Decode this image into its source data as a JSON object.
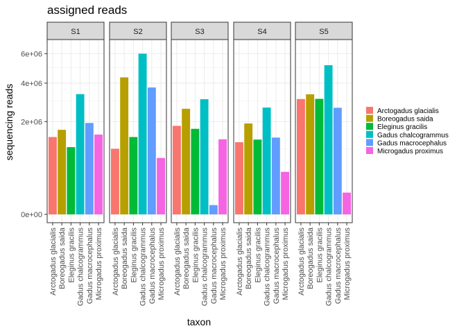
{
  "chart_data": {
    "type": "bar",
    "title": "assigned reads",
    "xlabel": "taxon",
    "ylabel": "sequencing reads",
    "scale": "sqrt",
    "ylim": [
      0,
      7100000
    ],
    "yticks": [
      {
        "value": 0,
        "label": "0e+00"
      },
      {
        "value": 2000000,
        "label": "2e+06"
      },
      {
        "value": 4000000,
        "label": "4e+06"
      },
      {
        "value": 6000000,
        "label": "6e+06"
      }
    ],
    "grid": true,
    "legend_position": "right",
    "categories": [
      "Arctogadus glacialis",
      "Boreogadus saida",
      "Eleginus gracilis",
      "Gadus chalcogrammus",
      "Gadus macrocephalus",
      "Microgadus proximus"
    ],
    "colors": [
      "#F8766D",
      "#B79F00",
      "#00BA38",
      "#00BFC4",
      "#619CFF",
      "#F564E3"
    ],
    "panels": [
      {
        "name": "S1",
        "values": [
          1390000,
          1660000,
          1050000,
          3360000,
          1940000,
          1480000
        ]
      },
      {
        "name": "S2",
        "values": [
          1000000,
          4360000,
          1390000,
          6000000,
          3740000,
          740000
        ]
      },
      {
        "name": "S3",
        "values": [
          1820000,
          2590000,
          1700000,
          3080000,
          20000,
          1310000
        ]
      },
      {
        "name": "S4",
        "values": [
          1210000,
          1920000,
          1300000,
          2650000,
          1370000,
          420000
        ]
      },
      {
        "name": "S5",
        "values": [
          3090000,
          3350000,
          3100000,
          5170000,
          2640000,
          110000
        ]
      }
    ]
  }
}
